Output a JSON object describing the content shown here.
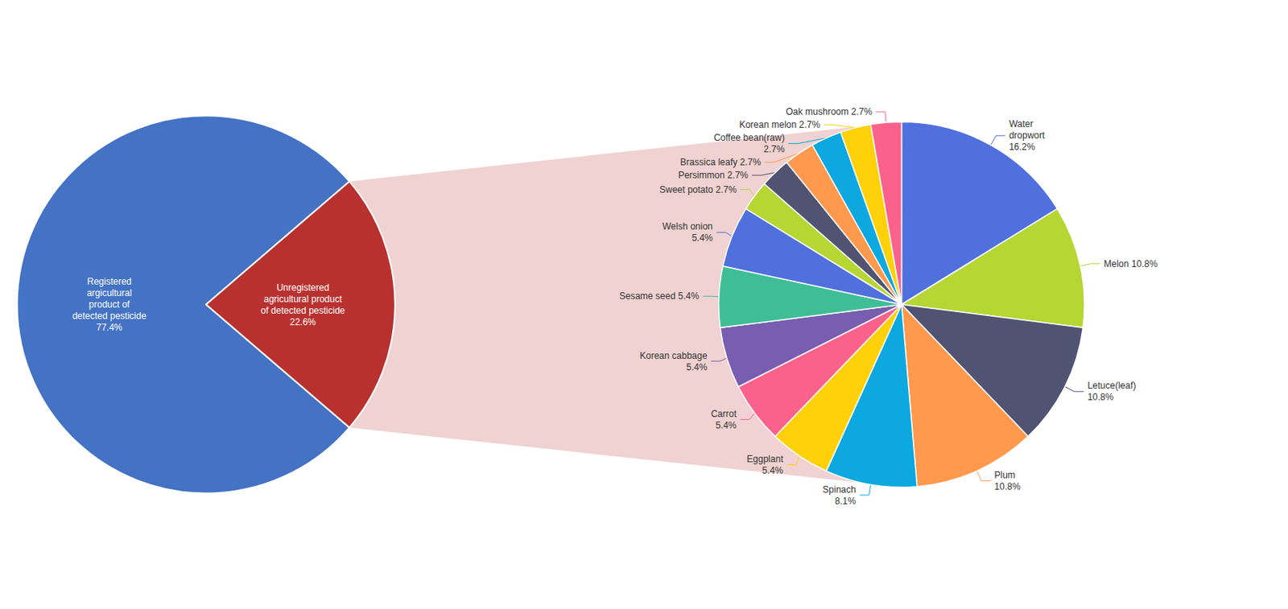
{
  "chart_data": [
    {
      "type": "pie",
      "categories": [
        "Registered\nargicultural\nproduct of\ndetected pesticide\n77.4%",
        "Unregistered\nagricultural product\nof detected pesticide\n22.6%"
      ],
      "values": [
        77.4,
        22.6
      ],
      "colors": [
        "#4472C4",
        "#B8312F"
      ]
    },
    {
      "type": "pie",
      "categories": [
        "Water\ndropwort\n16.2%",
        "Melon 10.8%",
        "Letuce(leaf)\n10.8%",
        "Plum\n10.8%",
        "Spinach\n8.1%",
        "Eggplant\n5.4%",
        "Carrot\n5.4%",
        "Korean cabbage\n5.4%",
        "Sesame seed 5.4%",
        "Welsh onion\n5.4%",
        "Sweet potato 2.7%",
        "Persimmon 2.7%",
        "Brassica leafy 2.7%",
        "Coffee bean(raw)\n2.7%",
        "Korean melon 2.7%",
        "Oak mushroom 2.7%"
      ],
      "values": [
        16.2,
        10.8,
        10.8,
        10.8,
        8.1,
        5.4,
        5.4,
        5.4,
        5.4,
        5.4,
        2.7,
        2.7,
        2.7,
        2.7,
        2.7,
        2.7
      ]
    }
  ]
}
